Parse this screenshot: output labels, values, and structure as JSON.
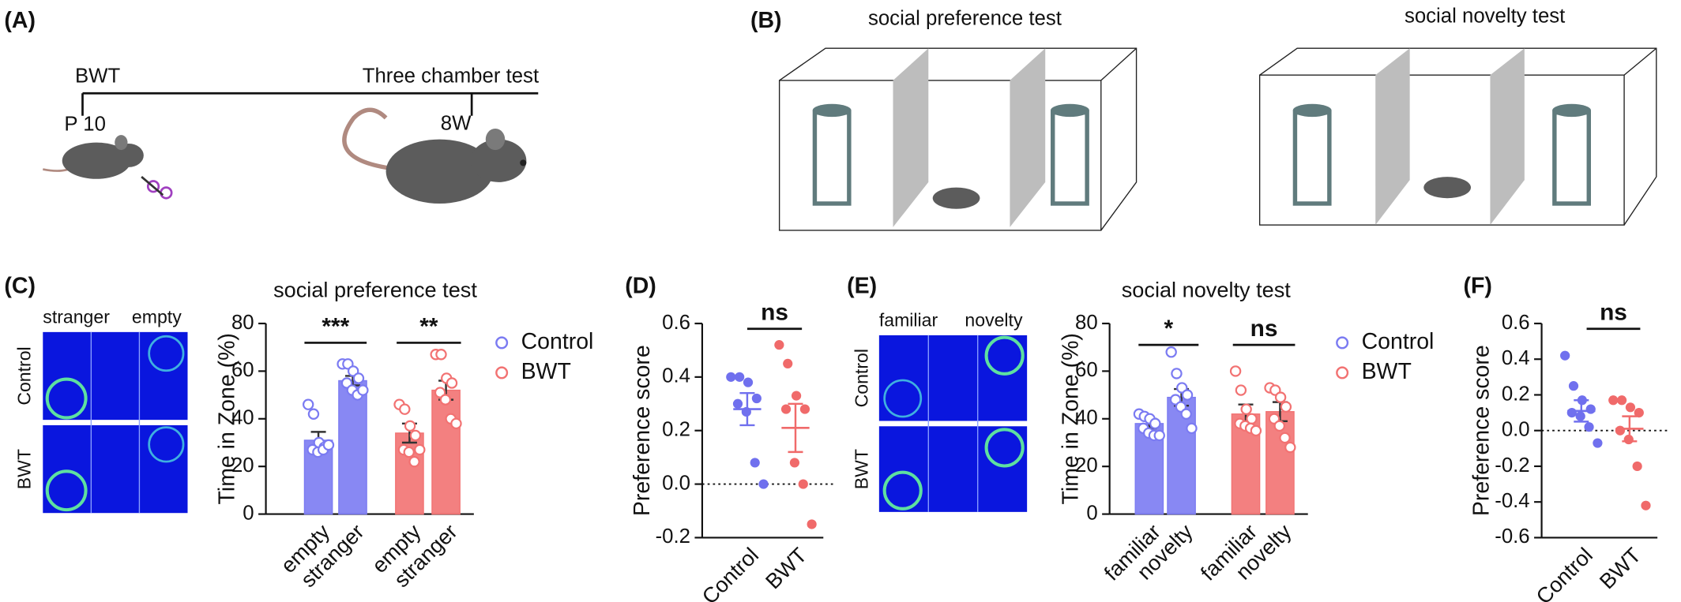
{
  "panel_labels": [
    "(A)",
    "(B)",
    "(C)",
    "(D)",
    "(E)",
    "(F)"
  ],
  "timeline": {
    "start": "BWT",
    "start_age": "P 10",
    "end": "Three chamber test",
    "end_age": "8W"
  },
  "apparatus_titles": [
    "social preference test",
    "social novelty test"
  ],
  "heatmaps": [
    {
      "columns": [
        "stranger",
        "empty"
      ],
      "rows": [
        "Control",
        "BWT"
      ]
    },
    {
      "columns": [
        "familiar",
        "novelty"
      ],
      "rows": [
        "Control",
        "BWT"
      ]
    }
  ],
  "chart_data": [
    {
      "type": "bar",
      "title": "social preference test",
      "y_label": "Time in Zone (%)",
      "categories": [
        "empty",
        "stranger",
        "empty",
        "stranger"
      ],
      "series": [
        {
          "name": "Control",
          "color": "#7b7bf2",
          "values": [
            31,
            56,
            null,
            null
          ],
          "errors": [
            3.5,
            2,
            null,
            null
          ],
          "points": [
            [
              46,
              42,
              30,
              28,
              27,
              26,
              27,
              29
            ],
            [
              63,
              63,
              60,
              57,
              55,
              52,
              50,
              52
            ],
            null,
            null
          ]
        },
        {
          "name": "BWT",
          "color": "#f27272",
          "values": [
            null,
            null,
            34,
            52
          ],
          "errors": [
            null,
            null,
            4,
            4
          ],
          "points": [
            null,
            null,
            [
              46,
              44,
              37,
              33,
              27,
              26,
              22,
              27
            ],
            [
              67,
              67,
              57,
              55,
              51,
              48,
              40,
              38
            ]
          ]
        }
      ],
      "ylim": [
        0,
        80
      ],
      "yticks": [
        0,
        20,
        40,
        60,
        80
      ],
      "significance": [
        "***",
        "**"
      ],
      "legend": "right"
    },
    {
      "type": "dot",
      "y_label": "Preference score",
      "categories": [
        "Control",
        "BWT"
      ],
      "colors": [
        "#7070ee",
        "#f06a6a"
      ],
      "points": [
        [
          0.4,
          0.4,
          0.38,
          0.32,
          0.3,
          0.27,
          0.08,
          0.0
        ],
        [
          0.52,
          0.45,
          0.33,
          0.28,
          0.28,
          0.08,
          0.0,
          -0.15
        ]
      ],
      "means": [
        0.28,
        0.21
      ],
      "errors": [
        0.06,
        0.09
      ],
      "ylim": [
        -0.2,
        0.6
      ],
      "yticks": [
        -0.2,
        {
          "value": 0,
          "label": "0.0"
        },
        0.2,
        0.4,
        0.6
      ],
      "reference_line": 0,
      "significance": [
        "ns"
      ]
    },
    {
      "type": "bar",
      "title": "social novelty test",
      "y_label": "Time in Zone (%)",
      "categories": [
        "familiar",
        "novelty",
        "familiar",
        "novelty"
      ],
      "series": [
        {
          "name": "Control",
          "color": "#7b7bf2",
          "values": [
            38,
            49,
            null,
            null
          ],
          "errors": [
            2,
            3.5,
            null,
            null
          ],
          "points": [
            [
              42,
              41,
              40,
              38,
              36,
              34,
              33,
              33
            ],
            [
              68,
              59,
              53,
              50,
              48,
              45,
              42,
              36
            ],
            null,
            null
          ]
        },
        {
          "name": "BWT",
          "color": "#f27272",
          "values": [
            null,
            null,
            42,
            43
          ],
          "errors": [
            null,
            null,
            4,
            4
          ],
          "points": [
            null,
            null,
            [
              60,
              52,
              44,
              40,
              38,
              37,
              36,
              35
            ],
            [
              53,
              52,
              49,
              45,
              40,
              37,
              32,
              28
            ]
          ]
        }
      ],
      "ylim": [
        0,
        80
      ],
      "yticks": [
        0,
        20,
        40,
        60,
        80
      ],
      "significance": [
        "*",
        "ns"
      ],
      "legend": "right"
    },
    {
      "type": "dot",
      "y_label": "Preference score",
      "categories": [
        "Control",
        "BWT"
      ],
      "colors": [
        "#7070ee",
        "#f06a6a"
      ],
      "points": [
        [
          0.42,
          0.25,
          0.17,
          0.12,
          0.1,
          0.08,
          0.02,
          -0.07
        ],
        [
          0.17,
          0.17,
          0.13,
          0.1,
          0.0,
          -0.05,
          -0.2,
          -0.42
        ]
      ],
      "means": [
        0.11,
        0.01
      ],
      "errors": [
        0.06,
        0.07
      ],
      "ylim": [
        -0.6,
        0.6
      ],
      "yticks": [
        -0.6,
        -0.4,
        -0.2,
        {
          "value": 0,
          "label": "0.0"
        },
        0.2,
        0.4,
        0.6
      ],
      "reference_line": 0,
      "significance": [
        "ns"
      ]
    }
  ]
}
